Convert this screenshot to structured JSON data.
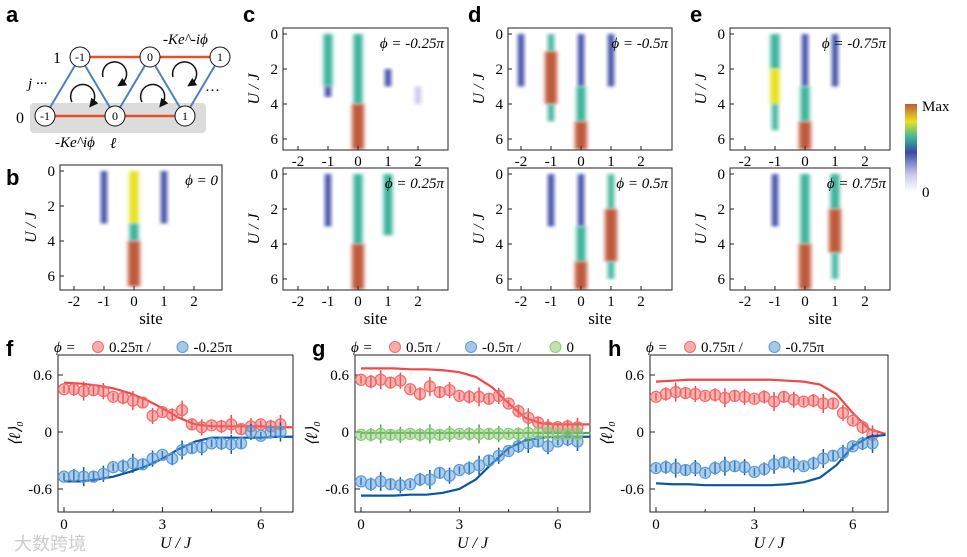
{
  "panel_labels": {
    "a": "a",
    "b": "b",
    "c": "c",
    "d": "d",
    "e": "e",
    "f": "f",
    "g": "g",
    "h": "h"
  },
  "diagram": {
    "hop_top": "-Ke^-iϕ",
    "hop_bottom": "-Ke^iϕ",
    "row1": "1",
    "row0": "0",
    "j_label": "j ···",
    "l_label": "ℓ",
    "dots": "···",
    "top_sites": [
      "-1",
      "0",
      "1"
    ],
    "bottom_sites": [
      "-1",
      "0",
      "1"
    ]
  },
  "colorbar": {
    "max": "Max",
    "min": "0",
    "colors": [
      "#ffffff",
      "#c9c9ec",
      "#3b4aa6",
      "#3cb49b",
      "#e6e21f",
      "#bf5a3d"
    ]
  },
  "axis": {
    "ylabel": "U / J",
    "xlabel": "site",
    "yticks": [
      "0",
      "2",
      "4",
      "6"
    ],
    "xticks": [
      "-2",
      "-1",
      "0",
      "1",
      "2"
    ]
  },
  "chart_data": [
    {
      "type": "heatmap",
      "id": "b",
      "title": "ϕ = 0",
      "xlabel": "site",
      "ylabel": "U / J",
      "xlim": [
        -2.5,
        2.9
      ],
      "ylim": [
        6.5,
        0
      ],
      "segments": [
        {
          "site": -1,
          "u": [
            0,
            3
          ],
          "level": 0.35
        },
        {
          "site": 0,
          "u": [
            0,
            3
          ],
          "level": 0.75
        },
        {
          "site": 0,
          "u": [
            3,
            4
          ],
          "level": 0.6
        },
        {
          "site": 0,
          "u": [
            4,
            6.6
          ],
          "level": 1
        },
        {
          "site": 1,
          "u": [
            0,
            3
          ],
          "level": 0.35
        }
      ]
    },
    {
      "type": "heatmap",
      "id": "c_top",
      "title": "ϕ = -0.25π",
      "ylim": [
        6.5,
        0
      ],
      "segments": [
        {
          "site": -1,
          "u": [
            0,
            3
          ],
          "level": 0.6
        },
        {
          "site": -1,
          "u": [
            3,
            3.6
          ],
          "level": 0.4
        },
        {
          "site": 0,
          "u": [
            0,
            4
          ],
          "level": 0.55
        },
        {
          "site": 0,
          "u": [
            4,
            6.6
          ],
          "level": 1
        },
        {
          "site": 1,
          "u": [
            2,
            3
          ],
          "level": 0.45
        },
        {
          "site": 2,
          "u": [
            3,
            4
          ],
          "level": 0.15
        }
      ]
    },
    {
      "type": "heatmap",
      "id": "c_bottom",
      "title": "ϕ = 0.25π",
      "ylim": [
        6.5,
        0
      ],
      "segments": [
        {
          "site": -1,
          "u": [
            0,
            3
          ],
          "level": 0.3
        },
        {
          "site": 0,
          "u": [
            0,
            4
          ],
          "level": 0.62
        },
        {
          "site": 0,
          "u": [
            4,
            6.6
          ],
          "level": 0.9
        },
        {
          "site": 1,
          "u": [
            0,
            3.5
          ],
          "level": 0.6
        }
      ]
    },
    {
      "type": "heatmap",
      "id": "d_top",
      "title": "ϕ = -0.5π",
      "ylim": [
        6.5,
        0
      ],
      "segments": [
        {
          "site": -2,
          "u": [
            0,
            3
          ],
          "level": 0.35
        },
        {
          "site": -1,
          "u": [
            0,
            1
          ],
          "level": 0.5
        },
        {
          "site": -1,
          "u": [
            1,
            4
          ],
          "level": 0.82
        },
        {
          "site": -1,
          "u": [
            4,
            5
          ],
          "level": 0.5
        },
        {
          "site": 0,
          "u": [
            0,
            3
          ],
          "level": 0.3
        },
        {
          "site": 0,
          "u": [
            3,
            5
          ],
          "level": 0.62
        },
        {
          "site": 0,
          "u": [
            5,
            6.6
          ],
          "level": 1
        },
        {
          "site": 1,
          "u": [
            0,
            3
          ],
          "level": 0.3
        }
      ]
    },
    {
      "type": "heatmap",
      "id": "d_bottom",
      "title": "ϕ = 0.5π",
      "ylim": [
        6.5,
        0
      ],
      "segments": [
        {
          "site": -1,
          "u": [
            0,
            3
          ],
          "level": 0.3
        },
        {
          "site": 0,
          "u": [
            0,
            3
          ],
          "level": 0.4
        },
        {
          "site": 0,
          "u": [
            3,
            5
          ],
          "level": 0.62
        },
        {
          "site": 0,
          "u": [
            5,
            6.6
          ],
          "level": 1
        },
        {
          "site": 1,
          "u": [
            0,
            2
          ],
          "level": 0.5
        },
        {
          "site": 1,
          "u": [
            2,
            5
          ],
          "level": 0.88
        },
        {
          "site": 1,
          "u": [
            5,
            6
          ],
          "level": 0.5
        }
      ]
    },
    {
      "type": "heatmap",
      "id": "e_top",
      "title": "ϕ = -0.75π",
      "ylim": [
        6.5,
        0
      ],
      "segments": [
        {
          "site": -1,
          "u": [
            0,
            2
          ],
          "level": 0.6
        },
        {
          "site": -1,
          "u": [
            2,
            4
          ],
          "level": 0.75
        },
        {
          "site": -1,
          "u": [
            4,
            5.5
          ],
          "level": 0.5
        },
        {
          "site": 0,
          "u": [
            0,
            3
          ],
          "level": 0.35
        },
        {
          "site": 0,
          "u": [
            3,
            5
          ],
          "level": 0.62
        },
        {
          "site": 0,
          "u": [
            5,
            6.6
          ],
          "level": 1
        },
        {
          "site": 1,
          "u": [
            0,
            3
          ],
          "level": 0.3
        }
      ]
    },
    {
      "type": "heatmap",
      "id": "e_bottom",
      "title": "ϕ = 0.75π",
      "ylim": [
        6.5,
        0
      ],
      "segments": [
        {
          "site": -1,
          "u": [
            0,
            3
          ],
          "level": 0.3
        },
        {
          "site": 0,
          "u": [
            0,
            4
          ],
          "level": 0.55
        },
        {
          "site": 0,
          "u": [
            4,
            6.6
          ],
          "level": 0.9
        },
        {
          "site": 1,
          "u": [
            0,
            2
          ],
          "level": 0.6
        },
        {
          "site": 1,
          "u": [
            2,
            4.5
          ],
          "level": 0.88
        },
        {
          "site": 1,
          "u": [
            4.5,
            6
          ],
          "level": 0.5
        }
      ]
    },
    {
      "type": "scatter",
      "id": "f",
      "xlabel": "U / J",
      "ylabel": "⟨ℓ⟩₀",
      "xlim": [
        -0.2,
        7
      ],
      "ylim": [
        -0.8,
        0.8
      ],
      "xticks": [
        "0",
        "3",
        "6"
      ],
      "yticks": [
        "0.6",
        "0",
        "-0.6"
      ],
      "legend": {
        "prefix": "ϕ =",
        "entries": [
          "0.25π /",
          "-0.25π"
        ]
      },
      "series": [
        {
          "name": "0.25π",
          "color": "#f26a6a",
          "x": [
            0,
            0.3,
            0.6,
            0.9,
            1.2,
            1.5,
            1.8,
            2.1,
            2.4,
            2.7,
            3,
            3.3,
            3.6,
            3.9,
            4.2,
            4.5,
            4.8,
            5.1,
            5.4,
            5.7,
            6,
            6.3,
            6.6
          ],
          "y": [
            0.45,
            0.45,
            0.43,
            0.44,
            0.43,
            0.37,
            0.36,
            0.33,
            0.31,
            0.17,
            0.21,
            0.18,
            0.23,
            0.08,
            0.05,
            0.07,
            0.06,
            0.08,
            0.03,
            0.06,
            0.08,
            0.06,
            0.08
          ],
          "fit": {
            "x": [
              0,
              0.5,
              1,
              1.5,
              2,
              2.5,
              3,
              3.5,
              4,
              4.5,
              5,
              5.5,
              6,
              6.5,
              7
            ],
            "y": [
              0.52,
              0.51,
              0.49,
              0.46,
              0.41,
              0.34,
              0.25,
              0.15,
              0.08,
              0.06,
              0.06,
              0.06,
              0.06,
              0.05,
              0.05
            ]
          }
        },
        {
          "name": "-0.25π",
          "color": "#5b9bd5",
          "x": [
            0,
            0.3,
            0.6,
            0.9,
            1.2,
            1.5,
            1.8,
            2.1,
            2.4,
            2.7,
            3,
            3.3,
            3.6,
            3.9,
            4.2,
            4.5,
            4.8,
            5.1,
            5.4,
            5.7,
            6,
            6.3,
            6.6
          ],
          "y": [
            -0.47,
            -0.46,
            -0.47,
            -0.47,
            -0.44,
            -0.37,
            -0.36,
            -0.33,
            -0.34,
            -0.28,
            -0.24,
            -0.28,
            -0.19,
            -0.17,
            -0.16,
            -0.12,
            -0.12,
            -0.13,
            -0.12,
            0,
            -0.04,
            0,
            0
          ],
          "fit": {
            "x": [
              0,
              0.5,
              1,
              1.5,
              2,
              2.5,
              3,
              3.5,
              4,
              4.5,
              5,
              5.5,
              6,
              6.5,
              7
            ],
            "y": [
              -0.52,
              -0.52,
              -0.5,
              -0.47,
              -0.42,
              -0.36,
              -0.28,
              -0.18,
              -0.1,
              -0.06,
              -0.06,
              -0.06,
              -0.06,
              -0.05,
              -0.05
            ]
          }
        }
      ]
    },
    {
      "type": "scatter",
      "id": "g",
      "xlabel": "U / J",
      "ylabel": "⟨ℓ⟩₀",
      "xlim": [
        -0.2,
        7
      ],
      "ylim": [
        -0.8,
        0.8
      ],
      "xticks": [
        "0",
        "3",
        "6"
      ],
      "yticks": [
        "0.6",
        "0",
        "-0.6"
      ],
      "legend": {
        "prefix": "ϕ =",
        "entries": [
          "0.5π /",
          "-0.5π /",
          "0"
        ]
      },
      "series": [
        {
          "name": "0.5π",
          "color": "#f26a6a",
          "x": [
            0,
            0.3,
            0.6,
            0.9,
            1.2,
            1.5,
            1.8,
            2.1,
            2.4,
            2.7,
            3,
            3.3,
            3.6,
            3.9,
            4.2,
            4.5,
            4.8,
            5.1,
            5.4,
            5.7,
            6,
            6.3,
            6.6
          ],
          "y": [
            0.55,
            0.53,
            0.55,
            0.52,
            0.54,
            0.45,
            0.4,
            0.48,
            0.42,
            0.44,
            0.38,
            0.37,
            0.37,
            0.35,
            0.38,
            0.3,
            0.22,
            0.15,
            0.1,
            0.05,
            0.05,
            0.06,
            0.05
          ],
          "fit": {
            "x": [
              0,
              0.5,
              1,
              1.5,
              2,
              2.5,
              3,
              3.5,
              4,
              4.5,
              5,
              5.5,
              6,
              6.5,
              7
            ],
            "y": [
              0.67,
              0.67,
              0.67,
              0.66,
              0.66,
              0.65,
              0.63,
              0.58,
              0.47,
              0.3,
              0.15,
              0.09,
              0.08,
              0.08,
              0.08
            ]
          }
        },
        {
          "name": "-0.5π",
          "color": "#5b9bd5",
          "x": [
            0,
            0.3,
            0.6,
            0.9,
            1.2,
            1.5,
            1.8,
            2.1,
            2.4,
            2.7,
            3,
            3.3,
            3.6,
            3.9,
            4.2,
            4.5,
            4.8,
            5.1,
            5.4,
            5.7,
            6,
            6.3,
            6.6
          ],
          "y": [
            -0.52,
            -0.55,
            -0.52,
            -0.55,
            -0.56,
            -0.55,
            -0.5,
            -0.5,
            -0.43,
            -0.46,
            -0.4,
            -0.38,
            -0.35,
            -0.3,
            -0.25,
            -0.2,
            -0.15,
            -0.12,
            -0.1,
            -0.15,
            -0.1,
            -0.08,
            -0.1
          ],
          "fit": {
            "x": [
              0,
              0.5,
              1,
              1.5,
              2,
              2.5,
              3,
              3.5,
              4,
              4.5,
              5,
              5.5,
              6,
              6.5,
              7
            ],
            "y": [
              -0.67,
              -0.67,
              -0.67,
              -0.66,
              -0.66,
              -0.64,
              -0.6,
              -0.5,
              -0.33,
              -0.17,
              -0.09,
              -0.06,
              -0.05,
              -0.05,
              -0.05
            ]
          }
        },
        {
          "name": "0",
          "color": "#8cc97a",
          "x": [
            0,
            0.3,
            0.6,
            0.9,
            1.2,
            1.5,
            1.8,
            2.1,
            2.4,
            2.7,
            3,
            3.3,
            3.6,
            3.9,
            4.2,
            4.5,
            4.8,
            5.1,
            5.4,
            5.7,
            6,
            6.3,
            6.6
          ],
          "y": [
            -0.03,
            -0.03,
            -0.02,
            -0.03,
            -0.03,
            -0.02,
            -0.03,
            -0.02,
            -0.03,
            -0.02,
            -0.02,
            -0.02,
            -0.02,
            -0.02,
            -0.02,
            -0.02,
            -0.02,
            -0.01,
            -0.01,
            -0.01,
            -0.02,
            -0.02,
            -0.02
          ],
          "fit": {
            "x": [
              0,
              7
            ],
            "y": [
              -0.01,
              -0.01
            ]
          }
        }
      ]
    },
    {
      "type": "scatter",
      "id": "h",
      "xlabel": "U / J",
      "ylabel": "⟨ℓ⟩₀",
      "xlim": [
        -0.2,
        7
      ],
      "ylim": [
        -0.8,
        0.8
      ],
      "xticks": [
        "0",
        "3",
        "6"
      ],
      "yticks": [
        "0.6",
        "0",
        "-0.6"
      ],
      "legend": {
        "prefix": "ϕ =",
        "entries": [
          "0.75π /",
          "-0.75π"
        ]
      },
      "series": [
        {
          "name": "0.75π",
          "color": "#f26a6a",
          "x": [
            0,
            0.3,
            0.6,
            0.9,
            1.2,
            1.5,
            1.8,
            2.1,
            2.4,
            2.7,
            3,
            3.3,
            3.6,
            3.9,
            4.2,
            4.5,
            4.8,
            5.1,
            5.4,
            5.7,
            6,
            6.3,
            6.6
          ],
          "y": [
            0.37,
            0.4,
            0.42,
            0.41,
            0.4,
            0.38,
            0.39,
            0.36,
            0.38,
            0.37,
            0.35,
            0.37,
            0.32,
            0.37,
            0.34,
            0.32,
            0.33,
            0.3,
            0.3,
            0.2,
            0.12,
            0.05,
            -0.03
          ],
          "fit": {
            "x": [
              0,
              0.5,
              1,
              1.5,
              2,
              2.5,
              3,
              3.5,
              4,
              4.5,
              5,
              5.5,
              6,
              6.5,
              7
            ],
            "y": [
              0.53,
              0.54,
              0.55,
              0.55,
              0.55,
              0.55,
              0.55,
              0.55,
              0.54,
              0.53,
              0.5,
              0.4,
              0.2,
              0.03,
              -0.02
            ]
          }
        },
        {
          "name": "-0.75π",
          "color": "#5b9bd5",
          "x": [
            0,
            0.3,
            0.6,
            0.9,
            1.2,
            1.5,
            1.8,
            2.1,
            2.4,
            2.7,
            3,
            3.3,
            3.6,
            3.9,
            4.2,
            4.5,
            4.8,
            5.1,
            5.4,
            5.7,
            6,
            6.3,
            6.6
          ],
          "y": [
            -0.38,
            -0.37,
            -0.38,
            -0.4,
            -0.38,
            -0.43,
            -0.38,
            -0.36,
            -0.36,
            -0.37,
            -0.42,
            -0.39,
            -0.34,
            -0.32,
            -0.34,
            -0.36,
            -0.33,
            -0.28,
            -0.25,
            -0.22,
            -0.15,
            -0.12,
            -0.12
          ],
          "fit": {
            "x": [
              0,
              0.5,
              1,
              1.5,
              2,
              2.5,
              3,
              3.5,
              4,
              4.5,
              5,
              5.5,
              6,
              6.5,
              7
            ],
            "y": [
              -0.54,
              -0.55,
              -0.55,
              -0.56,
              -0.56,
              -0.56,
              -0.56,
              -0.56,
              -0.55,
              -0.53,
              -0.48,
              -0.35,
              -0.15,
              -0.05,
              -0.03
            ]
          }
        }
      ]
    }
  ],
  "watermark": "大数跨境"
}
